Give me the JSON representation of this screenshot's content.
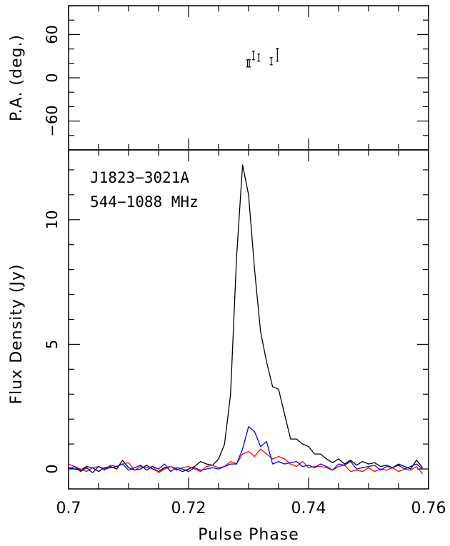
{
  "chart_data": [
    {
      "type": "scatter",
      "panel": "top",
      "ylabel": "P.A. (deg.)",
      "xlim": [
        0.7,
        0.76
      ],
      "ylim": [
        -100,
        100
      ],
      "yticks": [
        -60,
        0,
        60
      ],
      "ytick_labels": [
        "−60",
        "0",
        "60"
      ],
      "points": [
        {
          "x": 0.72982,
          "y": 20,
          "err": 5
        },
        {
          "x": 0.73013,
          "y": 20,
          "err": 5
        },
        {
          "x": 0.73081,
          "y": 31,
          "err": 6
        },
        {
          "x": 0.7317,
          "y": 28,
          "err": 5
        },
        {
          "x": 0.73377,
          "y": 23,
          "err": 5
        },
        {
          "x": 0.7348,
          "y": 32,
          "err": 9
        }
      ]
    },
    {
      "type": "line",
      "panel": "bottom",
      "xlabel": "Pulse Phase",
      "ylabel": "Flux Density (Jy)",
      "xlim": [
        0.7,
        0.76
      ],
      "ylim": [
        -0.8,
        12.8
      ],
      "xticks": [
        0.7,
        0.72,
        0.74,
        0.76
      ],
      "xtick_labels": [
        "0.7",
        "0.72",
        "0.74",
        "0.76"
      ],
      "yticks": [
        0,
        5,
        10
      ],
      "ytick_labels": [
        "0",
        "5",
        "10"
      ],
      "annotation": [
        "J1823−3021A",
        "544−1088 MHz"
      ],
      "series": [
        {
          "color": "#000000",
          "x": [
            0.7,
            0.701,
            0.702,
            0.703,
            0.704,
            0.705,
            0.706,
            0.707,
            0.708,
            0.709,
            0.71,
            0.711,
            0.712,
            0.713,
            0.714,
            0.715,
            0.716,
            0.717,
            0.718,
            0.719,
            0.72,
            0.721,
            0.722,
            0.723,
            0.724,
            0.725,
            0.726,
            0.727,
            0.728,
            0.729,
            0.73,
            0.731,
            0.732,
            0.733,
            0.734,
            0.735,
            0.736,
            0.737,
            0.738,
            0.739,
            0.74,
            0.741,
            0.742,
            0.743,
            0.744,
            0.745,
            0.746,
            0.747,
            0.748,
            0.749,
            0.75,
            0.751,
            0.752,
            0.753,
            0.754,
            0.755,
            0.756,
            0.757,
            0.758,
            0.759
          ],
          "values": [
            0.05,
            0.0,
            -0.05,
            0.1,
            0.05,
            -0.1,
            0.05,
            0.1,
            0.0,
            0.35,
            0.05,
            -0.05,
            0.0,
            0.15,
            0.0,
            -0.1,
            0.05,
            0.1,
            0.0,
            -0.1,
            0.0,
            0.1,
            0.3,
            0.2,
            0.15,
            0.4,
            1.0,
            3.0,
            8.5,
            12.2,
            11.0,
            8.0,
            5.5,
            4.3,
            3.3,
            3.2,
            2.2,
            1.2,
            1.2,
            1.0,
            0.9,
            0.6,
            0.6,
            0.4,
            0.25,
            0.4,
            0.2,
            0.35,
            0.15,
            0.3,
            0.2,
            0.25,
            0.1,
            0.15,
            0.05,
            0.2,
            0.1,
            0.0,
            0.35,
            0.05
          ]
        },
        {
          "color": "#0000ff",
          "x": [
            0.7,
            0.701,
            0.702,
            0.703,
            0.704,
            0.705,
            0.706,
            0.707,
            0.708,
            0.709,
            0.71,
            0.711,
            0.712,
            0.713,
            0.714,
            0.715,
            0.716,
            0.717,
            0.718,
            0.719,
            0.72,
            0.721,
            0.722,
            0.723,
            0.724,
            0.725,
            0.726,
            0.727,
            0.728,
            0.729,
            0.73,
            0.731,
            0.732,
            0.733,
            0.734,
            0.735,
            0.736,
            0.737,
            0.738,
            0.739,
            0.74,
            0.741,
            0.742,
            0.743,
            0.744,
            0.745,
            0.746,
            0.747,
            0.748,
            0.749,
            0.75,
            0.751,
            0.752,
            0.753,
            0.754,
            0.755,
            0.756,
            0.757,
            0.758,
            0.759
          ],
          "values": [
            0.0,
            0.1,
            -0.1,
            0.05,
            -0.15,
            0.1,
            0.0,
            0.05,
            0.1,
            0.2,
            -0.05,
            0.05,
            0.15,
            -0.05,
            0.1,
            0.0,
            0.2,
            -0.1,
            0.05,
            0.0,
            -0.1,
            0.05,
            -0.05,
            0.0,
            0.05,
            0.0,
            0.1,
            0.2,
            0.2,
            0.8,
            1.7,
            1.5,
            0.9,
            1.1,
            0.2,
            0.3,
            0.2,
            0.25,
            0.3,
            0.1,
            0.15,
            0.05,
            0.2,
            0.1,
            -0.05,
            0.2,
            0.15,
            0.3,
            0.0,
            0.05,
            0.1,
            0.15,
            -0.05,
            0.1,
            0.05,
            0.15,
            0.0,
            0.1,
            0.2,
            0.0
          ]
        },
        {
          "color": "#ff0000",
          "x": [
            0.7,
            0.701,
            0.702,
            0.703,
            0.704,
            0.705,
            0.706,
            0.707,
            0.708,
            0.709,
            0.71,
            0.711,
            0.712,
            0.713,
            0.714,
            0.715,
            0.716,
            0.717,
            0.718,
            0.719,
            0.72,
            0.721,
            0.722,
            0.723,
            0.724,
            0.725,
            0.726,
            0.727,
            0.728,
            0.729,
            0.73,
            0.731,
            0.732,
            0.733,
            0.734,
            0.735,
            0.736,
            0.737,
            0.738,
            0.739,
            0.74,
            0.741,
            0.742,
            0.743,
            0.744,
            0.745,
            0.746,
            0.747,
            0.748,
            0.749,
            0.75,
            0.751,
            0.752,
            0.753,
            0.754,
            0.755,
            0.756,
            0.757,
            0.758,
            0.759
          ],
          "values": [
            0.2,
            0.1,
            0.0,
            -0.1,
            0.05,
            0.1,
            -0.05,
            0.15,
            0.1,
            0.2,
            0.25,
            -0.05,
            0.1,
            0.05,
            0.1,
            -0.15,
            0.0,
            0.1,
            -0.05,
            0.05,
            0.1,
            0.0,
            -0.1,
            0.1,
            0.15,
            0.05,
            0.1,
            0.3,
            0.2,
            0.6,
            0.7,
            0.5,
            0.8,
            0.6,
            0.4,
            0.5,
            0.4,
            0.2,
            0.1,
            0.3,
            0.05,
            0.1,
            0.1,
            0.05,
            -0.05,
            0.1,
            0.15,
            -0.1,
            -0.05,
            -0.1,
            0.05,
            -0.1,
            0.0,
            -0.05,
            0.05,
            -0.1,
            0.0,
            -0.05,
            0.1,
            -0.2
          ]
        }
      ]
    }
  ]
}
